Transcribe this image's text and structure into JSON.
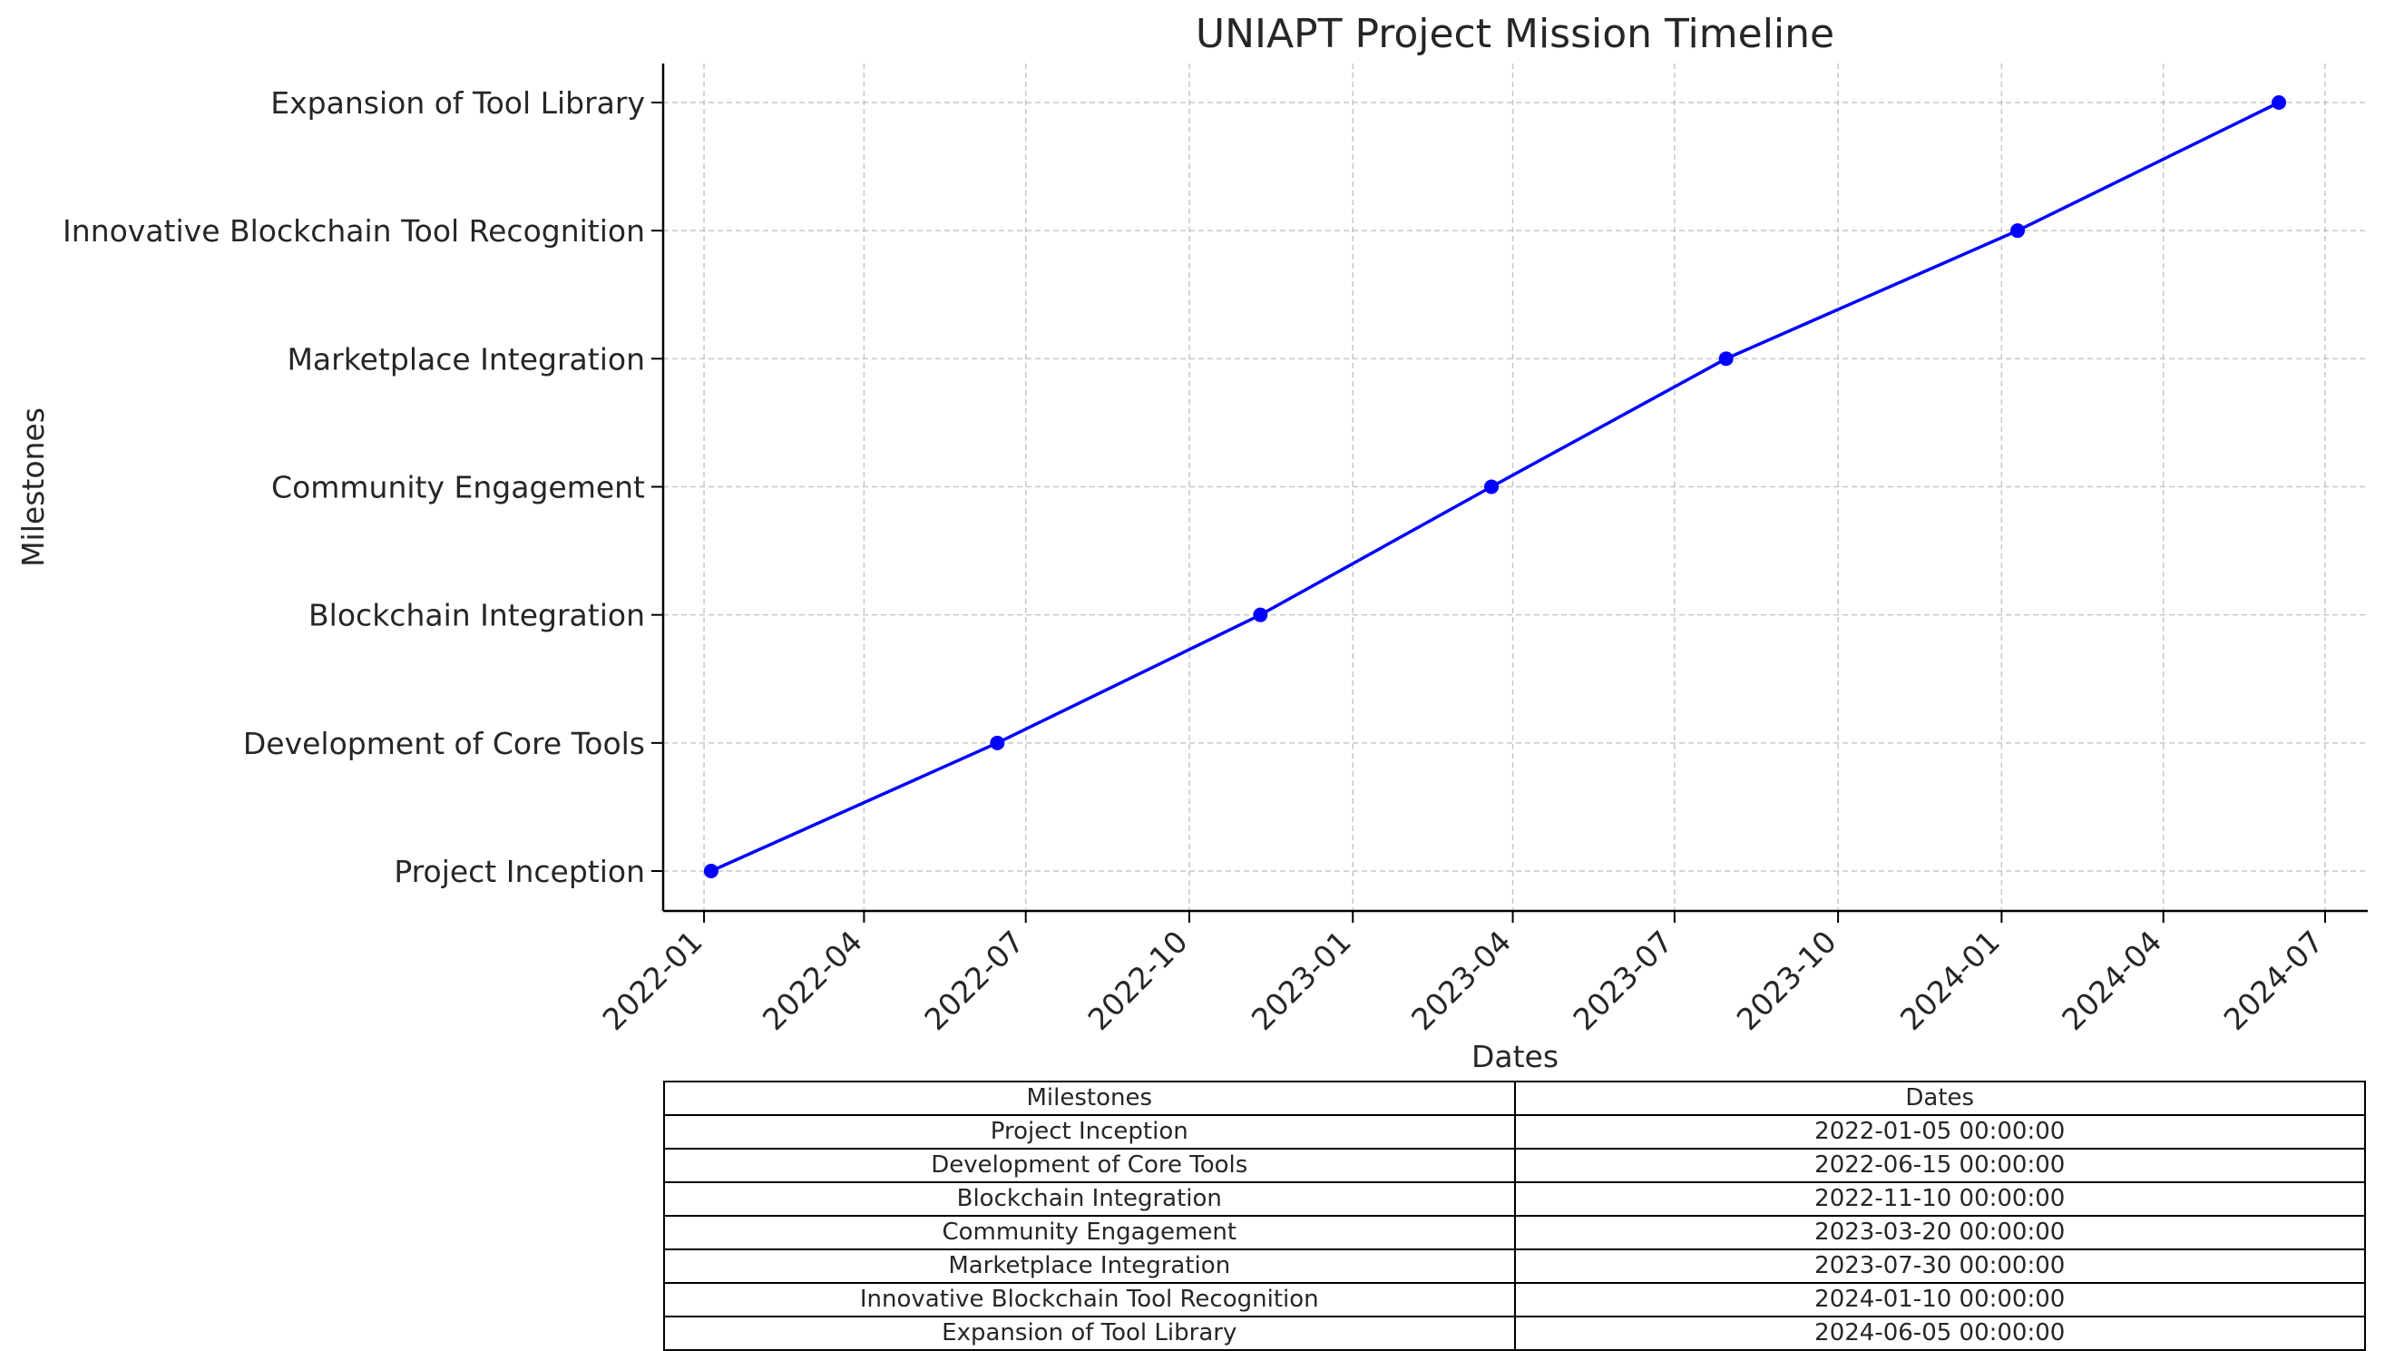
{
  "chart_data": {
    "type": "line",
    "title": "UNIAPT Project Mission Timeline",
    "xlabel": "Dates",
    "ylabel": "Milestones",
    "x_type": "date",
    "xlim": [
      "2021-12-09",
      "2024-07-25"
    ],
    "x_ticks": [
      "2022-01",
      "2022-04",
      "2022-07",
      "2022-10",
      "2023-01",
      "2023-04",
      "2023-07",
      "2023-10",
      "2024-01",
      "2024-04",
      "2024-07"
    ],
    "categories": [
      "Project Inception",
      "Development of Core Tools",
      "Blockchain Integration",
      "Community Engagement",
      "Marketplace Integration",
      "Innovative Blockchain Tool Recognition",
      "Expansion of Tool Library"
    ],
    "x": [
      "2022-01-05",
      "2022-06-15",
      "2022-11-10",
      "2023-03-20",
      "2023-07-30",
      "2024-01-10",
      "2024-06-05"
    ],
    "grid": true,
    "line_color": "#0000ff",
    "marker": "circle"
  },
  "table": {
    "headers": [
      "Milestones",
      "Dates"
    ],
    "rows": [
      [
        "Project Inception",
        "2022-01-05 00:00:00"
      ],
      [
        "Development of Core Tools",
        "2022-06-15 00:00:00"
      ],
      [
        "Blockchain Integration",
        "2022-11-10 00:00:00"
      ],
      [
        "Community Engagement",
        "2023-03-20 00:00:00"
      ],
      [
        "Marketplace Integration",
        "2023-07-30 00:00:00"
      ],
      [
        "Innovative Blockchain Tool Recognition",
        "2024-01-10 00:00:00"
      ],
      [
        "Expansion of Tool Library",
        "2024-06-05 00:00:00"
      ]
    ]
  }
}
